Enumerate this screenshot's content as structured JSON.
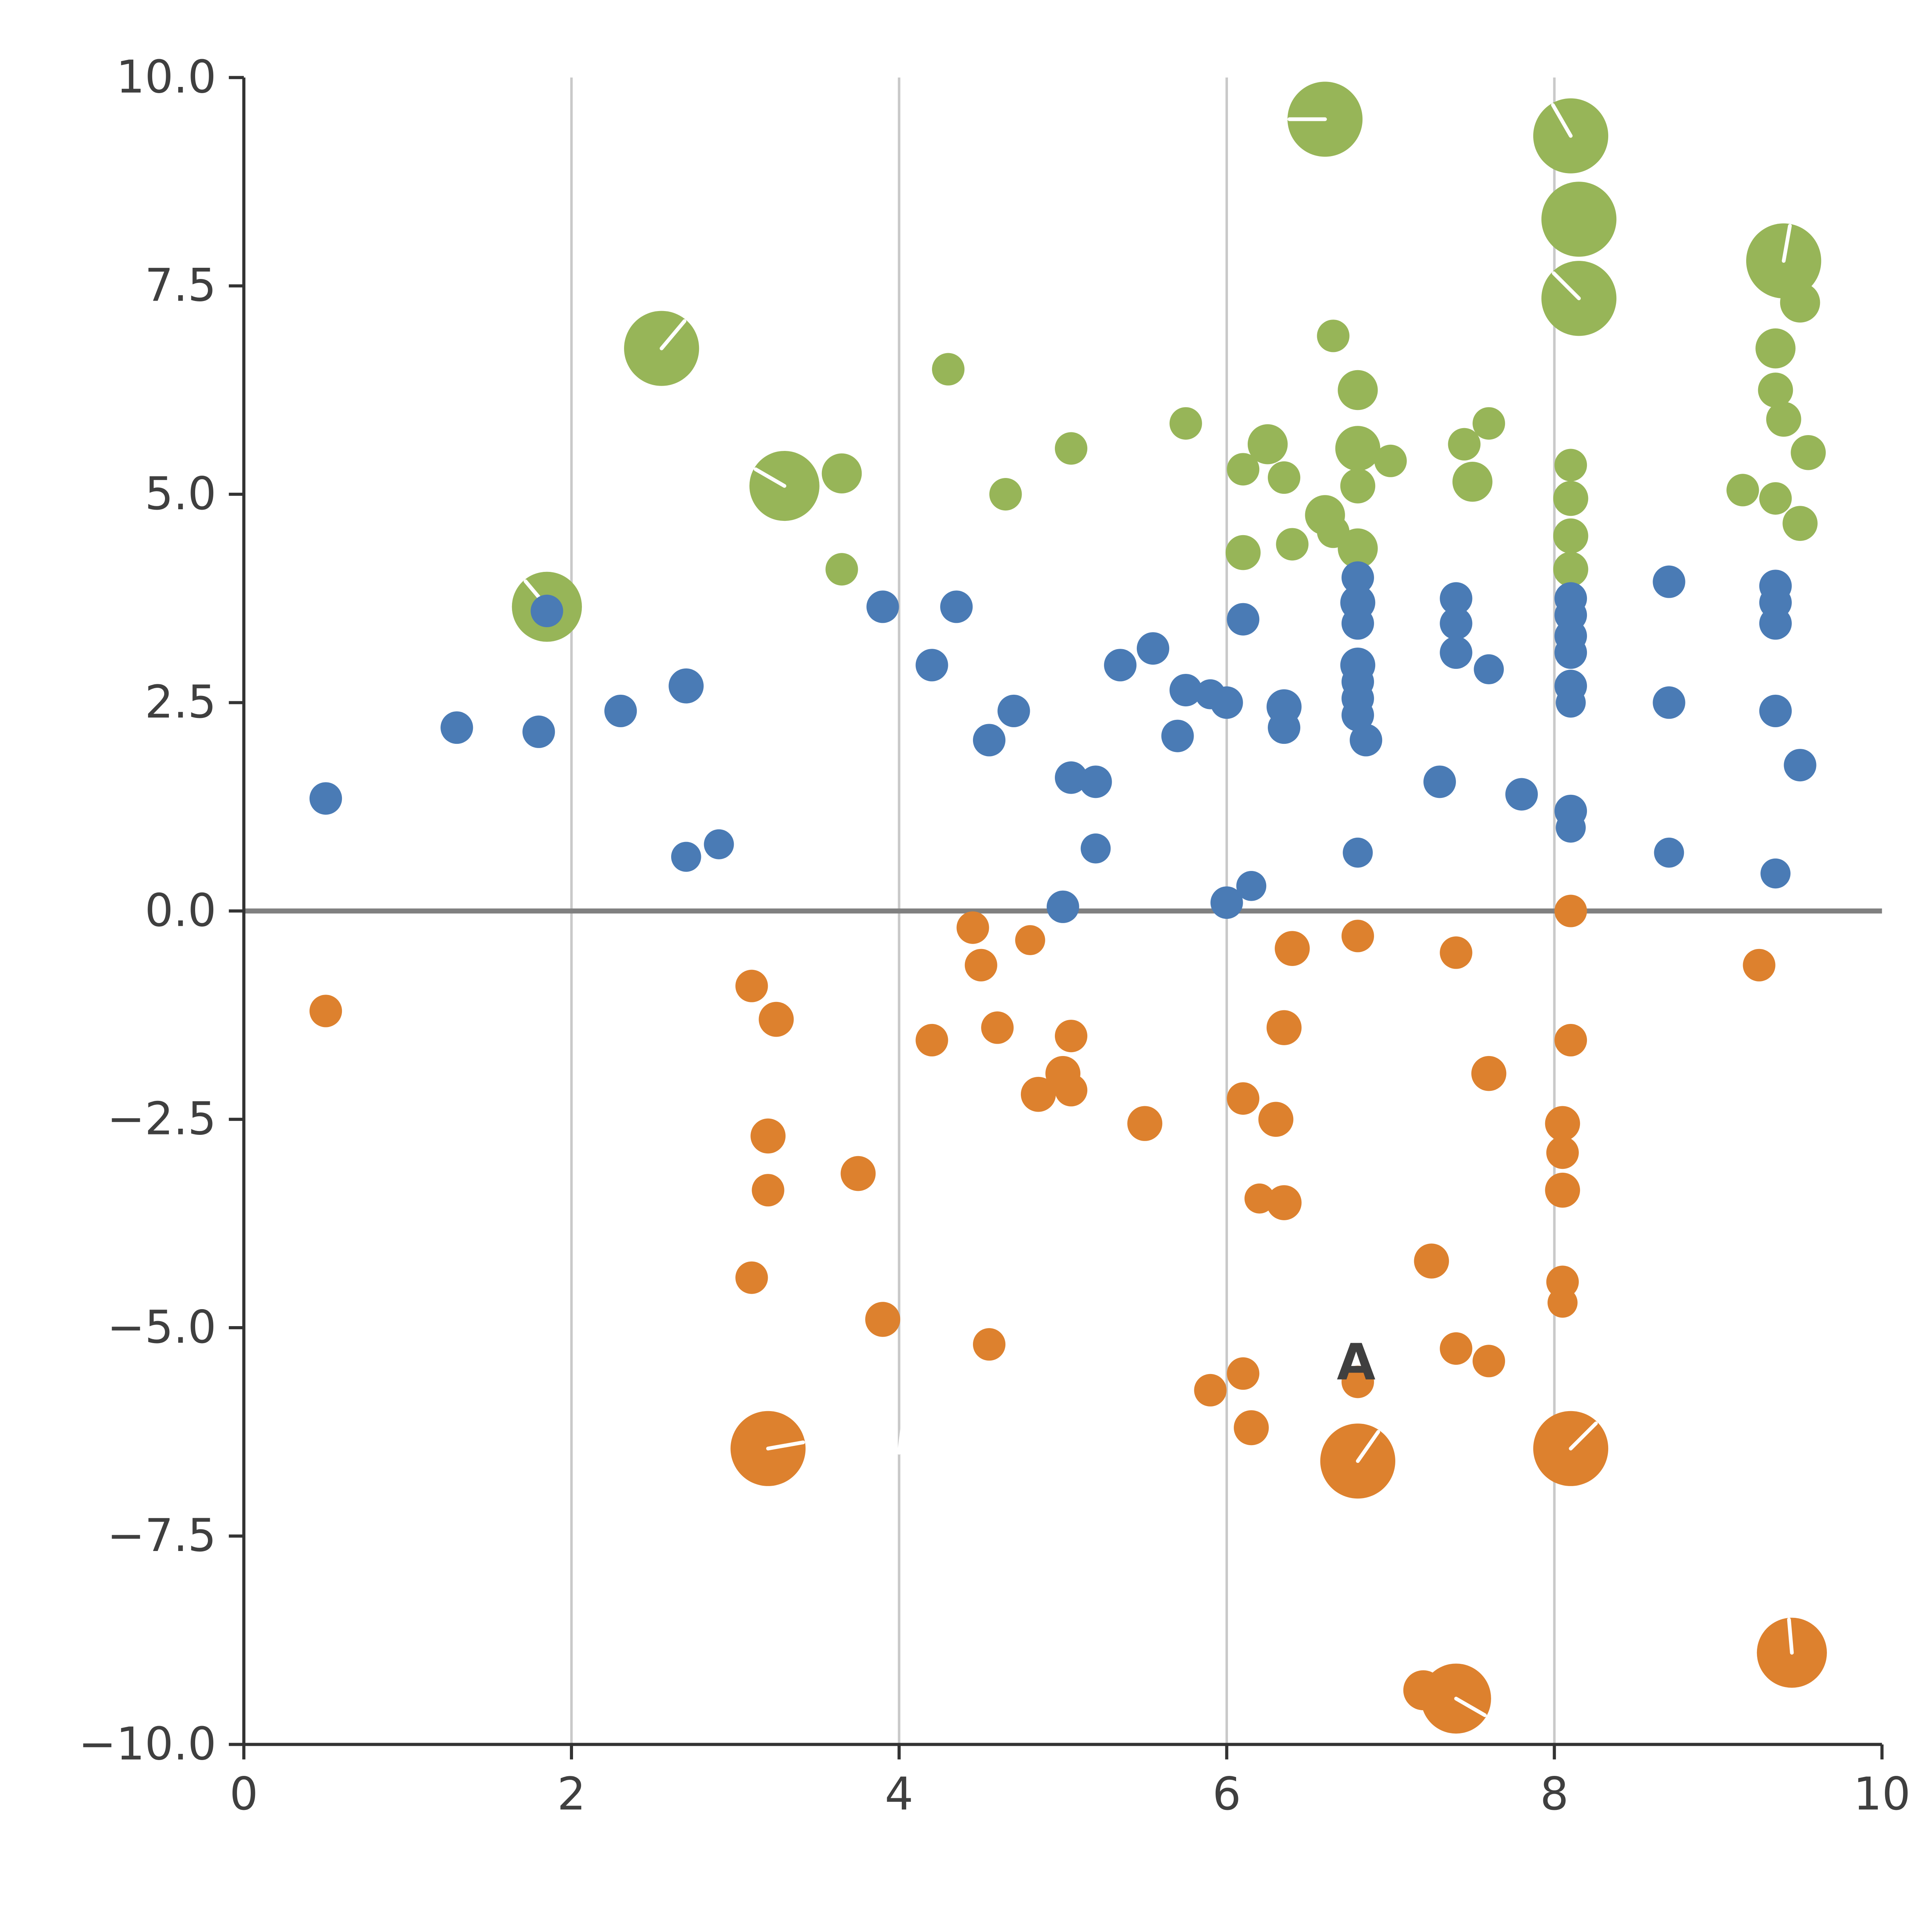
{
  "chart_data": {
    "type": "scatter",
    "title": "",
    "xlabel": "",
    "ylabel": "",
    "xlim": [
      0,
      10
    ],
    "ylim": [
      -10,
      10
    ],
    "x_tick_values": [
      0,
      2,
      4,
      6,
      8,
      10
    ],
    "x_tick_labels": [
      "0",
      "2",
      "4",
      "6",
      "8",
      "10"
    ],
    "y_tick_values": [
      10,
      7.5,
      5,
      2.5,
      0,
      -2.5,
      -5,
      -7.5,
      -10
    ],
    "y_tick_labels": [
      "10.0",
      "7.5",
      "5.0",
      "2.5",
      "0.0",
      "−2.5",
      "−5.0",
      "−7.5",
      "−10.0"
    ],
    "x_gridlines": [
      2,
      4,
      6,
      8
    ],
    "zero_line_y": 0,
    "grid": "vertical-only",
    "legend": "none",
    "colors": {
      "green": "#97b558",
      "blue": "#4a7bb5",
      "orange": "#dd812e",
      "gridline": "#c9c9c9",
      "zero_line": "#808080",
      "axis": "#333333",
      "tick_text": "#3f3f3f",
      "bubble_tick": "#ffffff"
    },
    "series": [
      {
        "name": "green",
        "color": "#97b558",
        "points": [
          [
            6.6,
            9.5,
            30,
            270
          ],
          [
            8.1,
            9.3,
            30,
            330
          ],
          [
            8.15,
            8.3,
            30
          ],
          [
            8.15,
            7.35,
            30,
            315
          ],
          [
            9.4,
            7.8,
            30,
            10
          ],
          [
            9.5,
            7.3,
            16
          ],
          [
            2.55,
            6.75,
            30,
            40
          ],
          [
            4.3,
            6.5,
            13
          ],
          [
            6.65,
            6.9,
            13
          ],
          [
            9.35,
            6.75,
            16
          ],
          [
            6.8,
            6.25,
            16
          ],
          [
            9.35,
            6.25,
            14
          ],
          [
            7.6,
            5.85,
            13
          ],
          [
            9.4,
            5.9,
            14
          ],
          [
            5.75,
            5.85,
            13
          ],
          [
            3.3,
            5.1,
            28,
            300
          ],
          [
            3.65,
            5.25,
            16
          ],
          [
            5.05,
            5.55,
            13
          ],
          [
            6.25,
            5.6,
            16
          ],
          [
            6.8,
            5.55,
            18
          ],
          [
            7.0,
            5.4,
            13
          ],
          [
            7.45,
            5.6,
            13
          ],
          [
            9.55,
            5.5,
            14
          ],
          [
            4.65,
            5.0,
            13
          ],
          [
            6.1,
            5.3,
            13
          ],
          [
            6.35,
            5.2,
            13
          ],
          [
            6.8,
            5.1,
            14
          ],
          [
            7.5,
            5.15,
            16
          ],
          [
            9.15,
            5.05,
            13
          ],
          [
            9.35,
            4.95,
            13
          ],
          [
            8.1,
            5.35,
            13
          ],
          [
            8.1,
            4.95,
            14
          ],
          [
            6.6,
            4.75,
            16
          ],
          [
            9.5,
            4.65,
            14
          ],
          [
            6.1,
            4.3,
            14
          ],
          [
            6.4,
            4.4,
            13
          ],
          [
            6.65,
            4.55,
            13
          ],
          [
            6.8,
            4.35,
            16
          ],
          [
            8.1,
            4.5,
            14
          ],
          [
            8.1,
            4.1,
            14
          ],
          [
            3.65,
            4.1,
            13
          ],
          [
            1.85,
            3.65,
            28,
            320
          ]
        ]
      },
      {
        "name": "blue",
        "color": "#4a7bb5",
        "points": [
          [
            0.5,
            1.35,
            13
          ],
          [
            1.3,
            2.2,
            13
          ],
          [
            1.8,
            2.15,
            13
          ],
          [
            1.85,
            3.6,
            13
          ],
          [
            2.3,
            2.4,
            13
          ],
          [
            2.7,
            2.7,
            14
          ],
          [
            2.7,
            0.65,
            12
          ],
          [
            2.9,
            0.8,
            12
          ],
          [
            3.9,
            3.65,
            13
          ],
          [
            4.2,
            2.95,
            13
          ],
          [
            4.35,
            3.65,
            13
          ],
          [
            4.55,
            2.05,
            13
          ],
          [
            4.7,
            2.4,
            13
          ],
          [
            5.0,
            0.05,
            13
          ],
          [
            5.05,
            1.6,
            13
          ],
          [
            5.2,
            1.55,
            13
          ],
          [
            5.2,
            0.75,
            12
          ],
          [
            5.35,
            2.95,
            13
          ],
          [
            5.55,
            3.15,
            13
          ],
          [
            5.7,
            2.1,
            13
          ],
          [
            5.75,
            2.65,
            13
          ],
          [
            5.9,
            2.6,
            12
          ],
          [
            6.0,
            2.5,
            13
          ],
          [
            6.0,
            0.1,
            13
          ],
          [
            6.15,
            0.3,
            12
          ],
          [
            6.1,
            3.5,
            13
          ],
          [
            6.35,
            2.45,
            14
          ],
          [
            6.35,
            2.2,
            13
          ],
          [
            6.8,
            4.0,
            13
          ],
          [
            6.8,
            3.7,
            14
          ],
          [
            6.8,
            3.45,
            13
          ],
          [
            6.8,
            2.95,
            14
          ],
          [
            6.8,
            2.75,
            13
          ],
          [
            6.8,
            2.55,
            13
          ],
          [
            6.8,
            2.35,
            13
          ],
          [
            6.85,
            2.05,
            13
          ],
          [
            6.8,
            0.7,
            12
          ],
          [
            7.3,
            1.55,
            13
          ],
          [
            7.4,
            3.75,
            13
          ],
          [
            7.4,
            3.45,
            13
          ],
          [
            7.4,
            3.1,
            13
          ],
          [
            7.6,
            2.9,
            12
          ],
          [
            7.8,
            1.4,
            13
          ],
          [
            8.1,
            1.2,
            13
          ],
          [
            8.1,
            1.0,
            12
          ],
          [
            8.1,
            3.75,
            13
          ],
          [
            8.1,
            3.55,
            13
          ],
          [
            8.1,
            3.3,
            13
          ],
          [
            8.1,
            3.1,
            13
          ],
          [
            8.1,
            2.7,
            13
          ],
          [
            8.1,
            2.5,
            12
          ],
          [
            8.7,
            3.95,
            13
          ],
          [
            8.7,
            2.5,
            13
          ],
          [
            8.7,
            0.7,
            12
          ],
          [
            9.35,
            3.9,
            13
          ],
          [
            9.35,
            3.7,
            13
          ],
          [
            9.35,
            3.45,
            13
          ],
          [
            9.35,
            2.4,
            13
          ],
          [
            9.5,
            1.75,
            13
          ],
          [
            9.35,
            0.45,
            12
          ]
        ]
      },
      {
        "name": "orange",
        "color": "#dd812e",
        "points": [
          [
            0.5,
            -1.2,
            13
          ],
          [
            3.1,
            -0.9,
            13
          ],
          [
            3.25,
            -1.3,
            14
          ],
          [
            3.2,
            -2.7,
            14
          ],
          [
            3.2,
            -3.35,
            13
          ],
          [
            3.1,
            -4.4,
            13
          ],
          [
            3.2,
            -6.45,
            30,
            80
          ],
          [
            3.75,
            -3.15,
            14
          ],
          [
            3.9,
            -4.9,
            14
          ],
          [
            4.2,
            -1.55,
            13
          ],
          [
            4.45,
            -0.2,
            13
          ],
          [
            4.5,
            -0.65,
            13
          ],
          [
            4.6,
            -1.4,
            13
          ],
          [
            4.55,
            -5.2,
            13
          ],
          [
            4.8,
            -0.35,
            12
          ],
          [
            4.85,
            -2.2,
            14
          ],
          [
            5.0,
            -1.95,
            14
          ],
          [
            5.05,
            -1.5,
            13
          ],
          [
            5.05,
            -2.15,
            13
          ],
          [
            5.5,
            -2.55,
            14
          ],
          [
            5.9,
            -5.75,
            13
          ],
          [
            6.1,
            -5.55,
            13
          ],
          [
            6.1,
            -2.25,
            13
          ],
          [
            6.2,
            -3.45,
            12
          ],
          [
            6.15,
            -6.2,
            14
          ],
          [
            6.3,
            -2.5,
            14
          ],
          [
            6.35,
            -3.5,
            14
          ],
          [
            6.35,
            -1.4,
            14
          ],
          [
            6.4,
            -0.45,
            14
          ],
          [
            6.8,
            -0.3,
            13
          ],
          [
            6.8,
            -5.65,
            13
          ],
          [
            6.8,
            -6.6,
            30,
            35
          ],
          [
            7.25,
            -4.2,
            14
          ],
          [
            7.4,
            -5.25,
            13
          ],
          [
            7.6,
            -5.4,
            13
          ],
          [
            7.6,
            -1.95,
            14
          ],
          [
            7.4,
            -0.5,
            13
          ],
          [
            7.2,
            -9.35,
            16
          ],
          [
            7.4,
            -9.45,
            28,
            120
          ],
          [
            8.1,
            0.0,
            13
          ],
          [
            8.1,
            -1.55,
            13
          ],
          [
            8.05,
            -2.55,
            14
          ],
          [
            8.05,
            -2.9,
            13
          ],
          [
            8.05,
            -3.35,
            14
          ],
          [
            8.05,
            -4.45,
            13
          ],
          [
            8.05,
            -4.7,
            12
          ],
          [
            8.1,
            -6.45,
            30,
            45
          ],
          [
            9.25,
            -0.65,
            13
          ],
          [
            9.45,
            -8.9,
            28,
            355
          ]
        ]
      }
    ],
    "annotations": [
      {
        "type": "text",
        "text": "A",
        "x": 6.79,
        "y": -5.62,
        "color": "#ffffff"
      },
      {
        "type": "line",
        "x1": 4.03,
        "y1": -6.05,
        "x2": 4.0,
        "y2": -6.5,
        "color": "#ffffff"
      }
    ]
  }
}
